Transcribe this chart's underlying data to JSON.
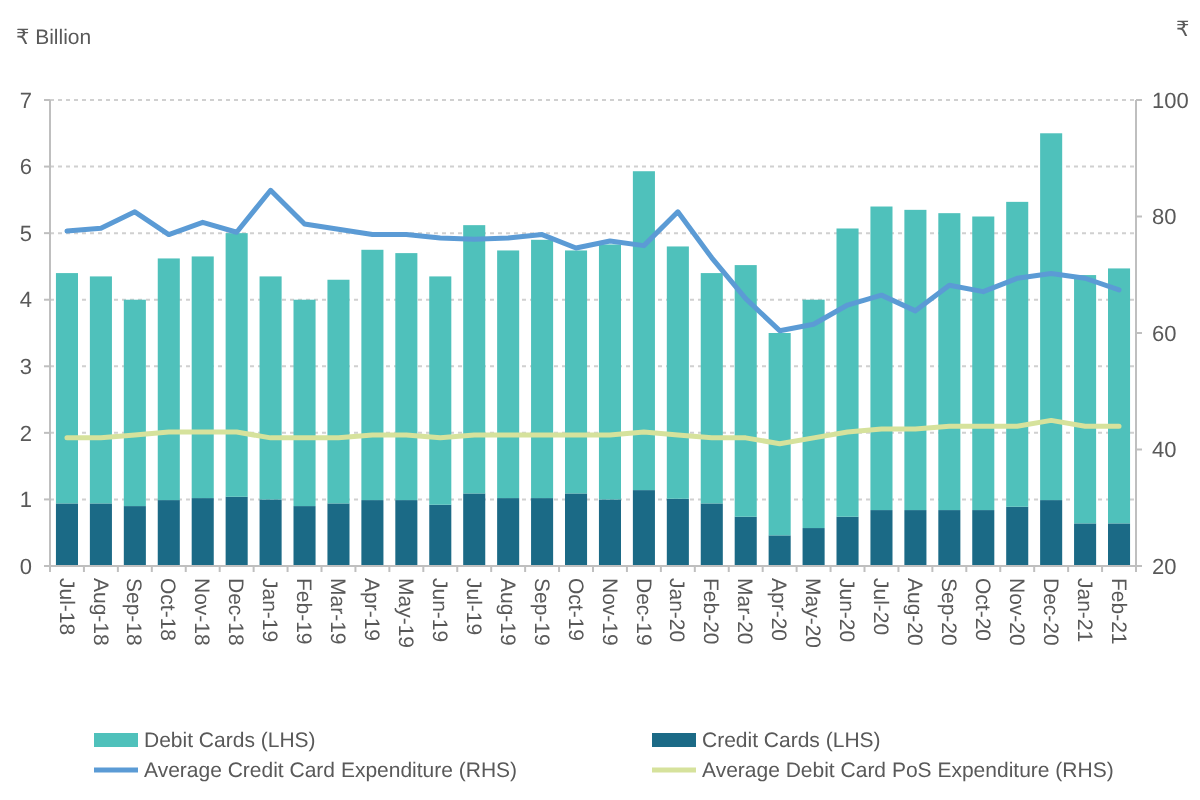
{
  "chart_data": {
    "type": "bar",
    "stacked": true,
    "ylabel": "₹ Billion",
    "y2label": "₹",
    "categories": [
      "Jul-18",
      "Aug-18",
      "Sep-18",
      "Oct-18",
      "Nov-18",
      "Dec-18",
      "Jan-19",
      "Feb-19",
      "Mar-19",
      "Apr-19",
      "May-19",
      "Jun-19",
      "Jul-19",
      "Aug-19",
      "Sep-19",
      "Oct-19",
      "Nov-19",
      "Dec-19",
      "Jan-20",
      "Feb-20",
      "Mar-20",
      "Apr-20",
      "May-20",
      "Jun-20",
      "Jul-20",
      "Aug-20",
      "Sep-20",
      "Oct-20",
      "Nov-20",
      "Dec-20",
      "Jan-21",
      "Feb-21"
    ],
    "series": [
      {
        "name": "Credit Cards (LHS)",
        "color": "#1b6a86",
        "values": [
          0.94,
          0.94,
          0.9,
          0.99,
          1.02,
          1.04,
          1.0,
          0.9,
          0.94,
          0.99,
          0.99,
          0.92,
          1.09,
          1.02,
          1.02,
          1.09,
          1.0,
          1.14,
          1.01,
          0.94,
          0.74,
          0.46,
          0.57,
          0.74,
          0.84,
          0.84,
          0.84,
          0.84,
          0.89,
          0.99,
          0.64,
          0.64
        ]
      },
      {
        "name": "Debit Cards (LHS)",
        "color": "#4fc1bb",
        "values": [
          3.46,
          3.41,
          3.1,
          3.63,
          3.63,
          3.96,
          3.35,
          3.1,
          3.36,
          3.76,
          3.71,
          3.43,
          4.03,
          3.72,
          3.88,
          3.65,
          3.83,
          4.79,
          3.79,
          3.46,
          3.78,
          3.04,
          3.43,
          4.33,
          4.56,
          4.51,
          4.46,
          4.41,
          4.58,
          5.51,
          3.73,
          3.83
        ]
      },
      {
        "name": "Average Credit Card Expenditure (RHS)",
        "type": "line",
        "axis": "y2",
        "color": "#5b9bd5",
        "values": [
          77.5,
          78,
          80.8,
          76.9,
          79,
          77.3,
          84.5,
          78.7,
          77.8,
          76.9,
          76.9,
          76.3,
          76.1,
          76.3,
          76.9,
          74.6,
          75.8,
          75,
          80.8,
          72.9,
          65.9,
          60.4,
          61.5,
          64.8,
          66.5,
          63.8,
          68.2,
          67.1,
          69.4,
          70.2,
          69.4,
          67.4
        ]
      },
      {
        "name": "Average Debit Card PoS Expenditure (RHS)",
        "type": "line",
        "axis": "y2",
        "color": "#d6e29c",
        "values": [
          42,
          42,
          42.5,
          43,
          43,
          43,
          42,
          42,
          42,
          42.5,
          42.5,
          42,
          42.5,
          42.5,
          42.5,
          42.5,
          42.5,
          43,
          42.5,
          42,
          42,
          41,
          42,
          43,
          43.5,
          43.5,
          44,
          44,
          44,
          45,
          44,
          44
        ]
      }
    ],
    "ylim": [
      0,
      7
    ],
    "yticks": [
      0,
      1,
      2,
      3,
      4,
      5,
      6,
      7
    ],
    "y2lim": [
      20,
      100
    ],
    "y2ticks": [
      20,
      40,
      60,
      80,
      100
    ],
    "grid": "y",
    "legend": "bottom"
  }
}
